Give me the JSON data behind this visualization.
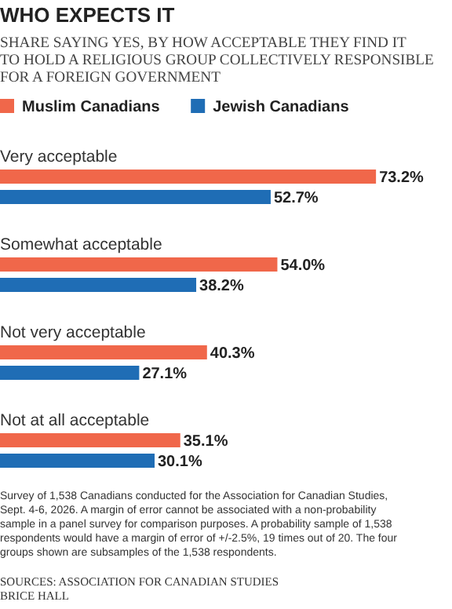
{
  "chart_data": {
    "type": "bar",
    "orientation": "horizontal",
    "title": "WHO EXPECTS IT",
    "subtitle": "SHARE SAYING YES, BY HOW ACCEPTABLE THEY FIND IT TO HOLD A RELIGIOUS GROUP COLLECTIVELY RESPONSIBLE FOR A FOREIGN GOVERNMENT",
    "categories": [
      "Very acceptable",
      "Somewhat acceptable",
      "Not very acceptable",
      "Not at all acceptable"
    ],
    "series": [
      {
        "name": "Muslim Canadians",
        "color": "#f0674a",
        "values": [
          73.2,
          54.0,
          40.3,
          35.1
        ],
        "value_labels": [
          "73.2%",
          "54.0%",
          "40.3%",
          "35.1%"
        ]
      },
      {
        "name": "Jewish Canadians",
        "color": "#1f6db5",
        "values": [
          52.7,
          38.2,
          27.1,
          30.1
        ],
        "value_labels": [
          "52.7%",
          "38.2%",
          "27.1%",
          "30.1%"
        ]
      }
    ],
    "xlim": [
      0,
      88
    ],
    "legend": "top left",
    "annotations": [
      "Survey of 1,538 Canadians conducted for the Association for Canadian Studies, Sept. 4-6, 2026. A margin of error cannot be associated with a non-probability sample in a panel survey for comparison purposes. A probability sample of 1,538 respondents would have a margin of error of +/-2.5%, 19 times out of 20. The four groups shown are subsamples of the 1,538 respondents.",
      "SOURCES: ASSOCIATION FOR CANADIAN STUDIES",
      "BRICE HALL"
    ]
  }
}
